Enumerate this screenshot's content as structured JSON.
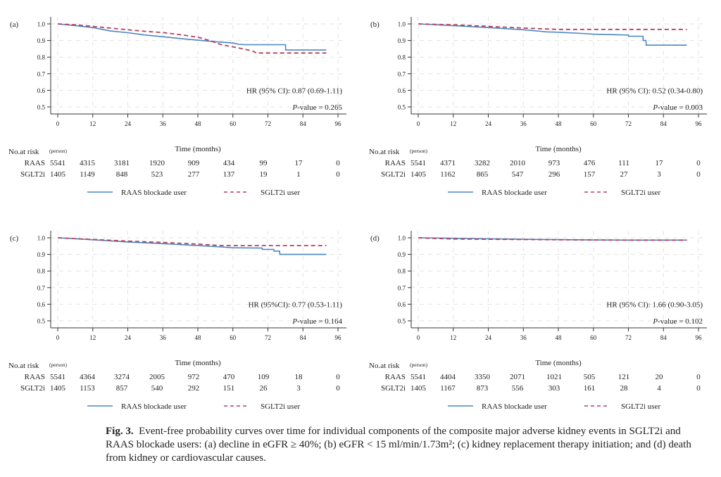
{
  "chart_data": [
    {
      "type": "line",
      "panel_label": "(a)",
      "xlabel": "Time (months)",
      "ylabel": "",
      "xlim": [
        0,
        96
      ],
      "ylim": [
        0.45,
        1.05
      ],
      "xticks": [
        0,
        12,
        24,
        36,
        48,
        60,
        72,
        84,
        96
      ],
      "yticks": [
        "1.0",
        "0.9",
        "0.8",
        "0.7",
        "0.6",
        "0.5"
      ],
      "grid": true,
      "annotation_hr": "HR (95% CI): 0.87 (0.69-1.11)",
      "annotation_p_label": "P",
      "annotation_p_rest": "-value = 0.265",
      "series": [
        {
          "name": "RAAS blockade user",
          "style": "solid",
          "color": "#4a86c5",
          "x": [
            0,
            6,
            12,
            18,
            24,
            30,
            36,
            42,
            48,
            54,
            60,
            62,
            64,
            78,
            78.1,
            92
          ],
          "y": [
            1.0,
            0.99,
            0.978,
            0.958,
            0.947,
            0.933,
            0.923,
            0.912,
            0.902,
            0.893,
            0.885,
            0.877,
            0.875,
            0.875,
            0.843,
            0.843
          ]
        },
        {
          "name": "SGLT2i user",
          "style": "dashed",
          "color": "#b5405a",
          "x": [
            0,
            6,
            12,
            18,
            24,
            30,
            36,
            42,
            48,
            52,
            56,
            60,
            64,
            67,
            68,
            92
          ],
          "y": [
            1.0,
            0.995,
            0.985,
            0.975,
            0.965,
            0.955,
            0.948,
            0.935,
            0.92,
            0.9,
            0.875,
            0.862,
            0.848,
            0.835,
            0.825,
            0.825
          ]
        }
      ],
      "risk_table": {
        "header": "No.at risk",
        "header_unit": "(person)",
        "rows": [
          {
            "label": "RAAS",
            "values": [
              "5541",
              "4315",
              "3181",
              "1920",
              "909",
              "434",
              "99",
              "17",
              "0"
            ]
          },
          {
            "label": "SGLT2i",
            "values": [
              "1405",
              "1149",
              "848",
              "523",
              "277",
              "137",
              "19",
              "1",
              "0"
            ]
          }
        ]
      }
    },
    {
      "type": "line",
      "panel_label": "(b)",
      "xlabel": "Time (months)",
      "ylabel": "",
      "xlim": [
        0,
        96
      ],
      "ylim": [
        0.45,
        1.05
      ],
      "xticks": [
        0,
        12,
        24,
        36,
        48,
        60,
        72,
        84,
        96
      ],
      "yticks": [
        "1.0",
        "0.9",
        "0.8",
        "0.7",
        "0.6",
        "0.5"
      ],
      "grid": true,
      "annotation_hr": "HR (95% CI): 0.52 (0.34-0.80)",
      "annotation_p_label": "P",
      "annotation_p_rest": "-value = 0.003",
      "series": [
        {
          "name": "RAAS blockade user",
          "style": "solid",
          "color": "#4a86c5",
          "x": [
            0,
            12,
            24,
            36,
            44,
            48,
            56,
            60,
            67,
            72,
            72.1,
            77,
            77.1,
            78,
            78.1,
            92
          ],
          "y": [
            1.0,
            0.99,
            0.978,
            0.965,
            0.952,
            0.95,
            0.943,
            0.938,
            0.935,
            0.933,
            0.926,
            0.926,
            0.9,
            0.9,
            0.872,
            0.872
          ]
        },
        {
          "name": "SGLT2i user",
          "style": "dashed",
          "color": "#b5405a",
          "x": [
            0,
            12,
            24,
            36,
            48,
            92
          ],
          "y": [
            1.0,
            0.995,
            0.985,
            0.975,
            0.967,
            0.967
          ]
        }
      ],
      "risk_table": {
        "header": "No.at risk",
        "header_unit": "(person)",
        "rows": [
          {
            "label": "RAAS",
            "values": [
              "5541",
              "4371",
              "3282",
              "2010",
              "973",
              "476",
              "111",
              "17",
              "0"
            ]
          },
          {
            "label": "SGLT2i",
            "values": [
              "1405",
              "1162",
              "865",
              "547",
              "296",
              "157",
              "27",
              "3",
              "0"
            ]
          }
        ]
      }
    },
    {
      "type": "line",
      "panel_label": "(c)",
      "xlabel": "Time (months)",
      "ylabel": "",
      "xlim": [
        0,
        96
      ],
      "ylim": [
        0.45,
        1.05
      ],
      "xticks": [
        0,
        12,
        24,
        36,
        48,
        60,
        72,
        84,
        96
      ],
      "yticks": [
        "1.0",
        "0.9",
        "0.8",
        "0.7",
        "0.6",
        "0.5"
      ],
      "grid": true,
      "annotation_hr": "HR (95%CI): 0.77 (0.53-1.11)",
      "annotation_p_label": "P",
      "annotation_p_rest": "-value = 0.164",
      "series": [
        {
          "name": "RAAS blockade user",
          "style": "solid",
          "color": "#4a86c5",
          "x": [
            0,
            12,
            24,
            36,
            48,
            56,
            60,
            70,
            70.1,
            74,
            74.1,
            76,
            76.1,
            92
          ],
          "y": [
            1.0,
            0.988,
            0.975,
            0.965,
            0.953,
            0.945,
            0.94,
            0.938,
            0.93,
            0.93,
            0.92,
            0.92,
            0.9,
            0.9
          ]
        },
        {
          "name": "SGLT2i user",
          "style": "dashed",
          "color": "#b5405a",
          "x": [
            0,
            12,
            24,
            36,
            48,
            56,
            92
          ],
          "y": [
            1.0,
            0.99,
            0.98,
            0.972,
            0.962,
            0.953,
            0.953
          ]
        }
      ],
      "risk_table": {
        "header": "No.at risk",
        "header_unit": "(person)",
        "rows": [
          {
            "label": "RAAS",
            "values": [
              "5541",
              "4364",
              "3274",
              "2005",
              "972",
              "470",
              "109",
              "18",
              "0"
            ]
          },
          {
            "label": "SGLT2i",
            "values": [
              "1405",
              "1153",
              "857",
              "540",
              "292",
              "151",
              "26",
              "3",
              "0"
            ]
          }
        ]
      }
    },
    {
      "type": "line",
      "panel_label": "(d)",
      "xlabel": "Time (months)",
      "ylabel": "",
      "xlim": [
        0,
        96
      ],
      "ylim": [
        0.45,
        1.05
      ],
      "xticks": [
        0,
        12,
        24,
        36,
        48,
        60,
        72,
        84,
        96
      ],
      "yticks": [
        "1.0",
        "0.9",
        "0.8",
        "0.7",
        "0.6",
        "0.5"
      ],
      "grid": true,
      "annotation_hr": "HR (95% CI): 1.66 (0.90-3.05)",
      "annotation_p_label": "P",
      "annotation_p_rest": "-value = 0.102",
      "series": [
        {
          "name": "RAAS blockade user",
          "style": "solid",
          "color": "#4a86c5",
          "x": [
            0,
            12,
            24,
            36,
            48,
            60,
            72,
            92
          ],
          "y": [
            1.0,
            0.997,
            0.994,
            0.991,
            0.989,
            0.987,
            0.986,
            0.986
          ]
        },
        {
          "name": "SGLT2i user",
          "style": "dashed",
          "color": "#b5405a",
          "x": [
            0,
            12,
            24,
            36,
            48,
            60,
            72,
            92
          ],
          "y": [
            1.0,
            0.993,
            0.991,
            0.99,
            0.988,
            0.987,
            0.986,
            0.986
          ]
        }
      ],
      "risk_table": {
        "header": "No.at risk",
        "header_unit": "(person)",
        "rows": [
          {
            "label": "RAAS",
            "values": [
              "5541",
              "4404",
              "3350",
              "2071",
              "1021",
              "505",
              "121",
              "20",
              "0"
            ]
          },
          {
            "label": "SGLT2i",
            "values": [
              "1405",
              "1167",
              "873",
              "556",
              "303",
              "161",
              "28",
              "4",
              "0"
            ]
          }
        ]
      }
    }
  ],
  "legend": {
    "items": [
      {
        "label": "RAAS blockade user",
        "style": "solid",
        "color": "#4a86c5"
      },
      {
        "label": "SGLT2i user",
        "style": "dashed",
        "color": "#b5405a"
      }
    ]
  },
  "caption": {
    "fig_label": "Fig. 3.",
    "text": "Event-free probability curves over time for individual components of the composite major adverse kidney events in SGLT2i and RAAS blockade users: (a) decline in eGFR ≥ 40%; (b) eGFR < 15 ml/min/1.73m²; (c) kidney replacement therapy initiation; and (d) death from kidney or cardiovascular causes."
  }
}
